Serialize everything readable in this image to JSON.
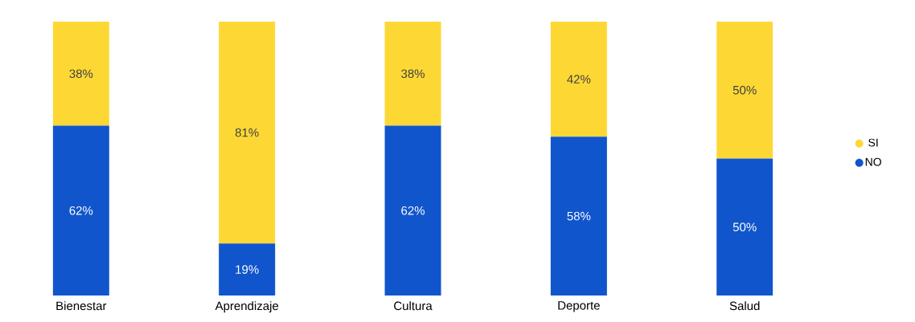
{
  "chart_data": {
    "type": "bar",
    "stacked": true,
    "legend": "right",
    "categories": [
      "Bienestar",
      "Aprendizaje",
      "Cultura",
      "Deporte",
      "Salud"
    ],
    "series": [
      {
        "name": "NO",
        "color": "#1155cc",
        "values": [
          62,
          19,
          62,
          58,
          50
        ],
        "value_labels": [
          "62%",
          "19%",
          "62%",
          "58%",
          "50%"
        ]
      },
      {
        "name": "SI",
        "color": "#fdd835",
        "values": [
          38,
          81,
          38,
          42,
          50
        ],
        "value_labels": [
          "38%",
          "81%",
          "38%",
          "42%",
          "50%"
        ]
      }
    ]
  }
}
